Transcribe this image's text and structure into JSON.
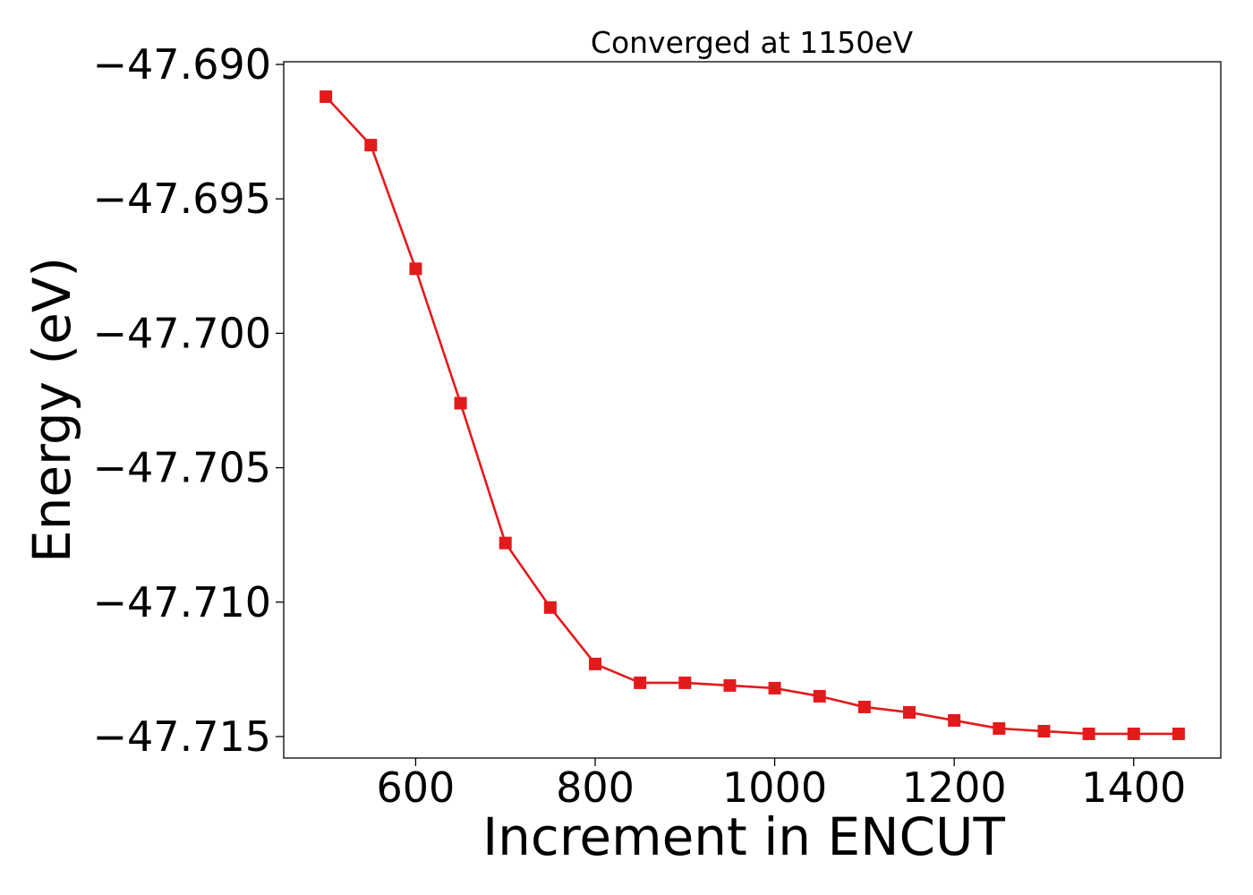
{
  "chart_data": {
    "type": "line",
    "title": "Converged at 1150eV",
    "xlabel": "Increment in ENCUT",
    "ylabel": "Energy (eV)",
    "xlim": [
      453,
      1497
    ],
    "ylim": [
      -47.7158,
      -47.6899
    ],
    "x_ticks": [
      600,
      800,
      1000,
      1200,
      1400
    ],
    "x_tick_labels": [
      "600",
      "800",
      "1000",
      "1200",
      "1400"
    ],
    "y_ticks": [
      -47.69,
      -47.695,
      -47.7,
      -47.705,
      -47.71,
      -47.715
    ],
    "y_tick_labels": [
      "−47.690",
      "−47.695",
      "−47.700",
      "−47.705",
      "−47.710",
      "−47.715"
    ],
    "grid": false,
    "series": [
      {
        "color": "#e31a1c",
        "marker": "square",
        "x": [
          500,
          550,
          600,
          650,
          700,
          750,
          800,
          850,
          900,
          950,
          1000,
          1050,
          1100,
          1150,
          1200,
          1250,
          1300,
          1350,
          1400,
          1450
        ],
        "y": [
          -47.6912,
          -47.693,
          -47.6976,
          -47.7026,
          -47.7078,
          -47.7102,
          -47.7123,
          -47.713,
          -47.713,
          -47.7131,
          -47.7132,
          -47.7135,
          -47.7139,
          -47.7141,
          -47.7144,
          -47.7147,
          -47.7148,
          -47.7149,
          -47.7149,
          -47.7149
        ]
      }
    ]
  }
}
